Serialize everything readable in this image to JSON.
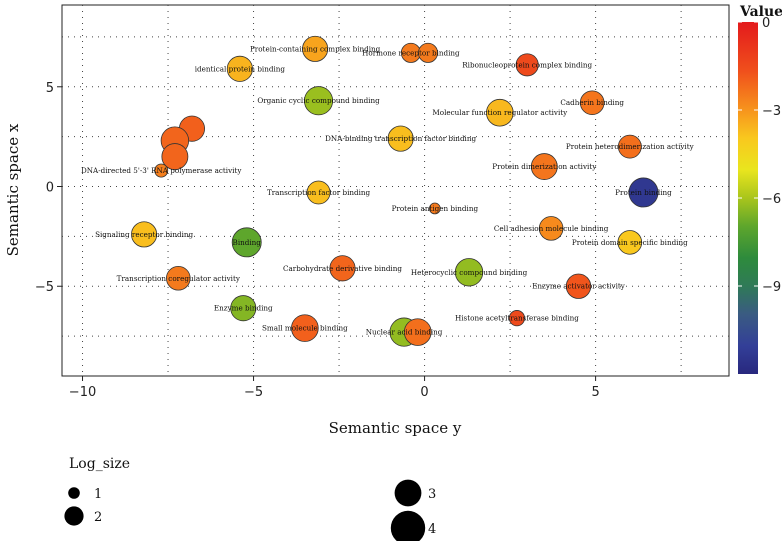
{
  "chart_data": {
    "type": "scatter",
    "title": "",
    "xlabel": "Semantic space y",
    "ylabel": "Semantic space x",
    "xlim": [
      -10.6,
      8.9
    ],
    "ylim": [
      -9.5,
      9.1
    ],
    "xticks": [
      -10,
      -5,
      0,
      5
    ],
    "yticks": [
      -5,
      0,
      5
    ],
    "xtick_labels": [
      "−10",
      "−5",
      "0",
      "5"
    ],
    "ytick_labels": [
      "−5",
      "0",
      "5"
    ],
    "grid": true,
    "color_legend": {
      "title": "Value",
      "min": -12,
      "max": 0,
      "ticks": [
        0,
        -3,
        -6,
        -9
      ],
      "tick_labels": [
        "0",
        "−3",
        "−6",
        "−9"
      ]
    },
    "size_legend": {
      "title": "Log_size",
      "entries": [
        {
          "label": "1",
          "log_size": 1
        },
        {
          "label": "2",
          "log_size": 2
        },
        {
          "label": "3",
          "log_size": 3
        },
        {
          "label": "4",
          "log_size": 4
        }
      ]
    },
    "points": [
      {
        "label": "Protein-containing complex binding",
        "x": -3.2,
        "y": 6.9,
        "value": -3.3,
        "log_size": 2.8
      },
      {
        "label": "Hormone receptor binding",
        "x": -0.4,
        "y": 6.7,
        "value": -2.5,
        "log_size": 2.0
      },
      {
        "label": "",
        "x": 0.1,
        "y": 6.7,
        "value": -2.5,
        "log_size": 2.0
      },
      {
        "label": "identical protein binding",
        "x": -5.4,
        "y": 5.9,
        "value": -3.6,
        "log_size": 2.8
      },
      {
        "label": "Ribonucleoprotein complex binding",
        "x": 3.0,
        "y": 6.1,
        "value": -1.5,
        "log_size": 2.4
      },
      {
        "label": "Organic cyclic compound binding",
        "x": -3.1,
        "y": 4.3,
        "value": -6.2,
        "log_size": 3.2
      },
      {
        "label": "Molecular function regulator activity",
        "x": 2.2,
        "y": 3.7,
        "value": -3.7,
        "log_size": 3.0
      },
      {
        "label": "Cadherin binding",
        "x": 4.9,
        "y": 4.2,
        "value": -2.4,
        "log_size": 2.6
      },
      {
        "label": "",
        "x": -6.8,
        "y": 2.9,
        "value": -2.0,
        "log_size": 2.8
      },
      {
        "label": "",
        "x": -7.3,
        "y": 2.3,
        "value": -2.1,
        "log_size": 3.1
      },
      {
        "label": "DNA-binding transcription factor binding",
        "x": -0.7,
        "y": 2.4,
        "value": -3.8,
        "log_size": 2.8
      },
      {
        "label": "Protein heterodimerization activity",
        "x": 6.0,
        "y": 2.0,
        "value": -2.3,
        "log_size": 2.5
      },
      {
        "label": "",
        "x": -7.3,
        "y": 1.5,
        "value": -2.1,
        "log_size": 2.9
      },
      {
        "label": "DNA-directed 5'-3' RNA polymerase activity",
        "x": -7.7,
        "y": 0.8,
        "value": -2.6,
        "log_size": 1.2
      },
      {
        "label": "Protein dimerization activity",
        "x": 3.5,
        "y": 1.0,
        "value": -2.4,
        "log_size": 2.9
      },
      {
        "label": "Transcription factor binding",
        "x": -3.1,
        "y": -0.3,
        "value": -3.8,
        "log_size": 2.5
      },
      {
        "label": "Protein binding",
        "x": 6.4,
        "y": -0.3,
        "value": -11.3,
        "log_size": 3.3
      },
      {
        "label": "Protein antigen binding",
        "x": 0.3,
        "y": -1.1,
        "value": -2.5,
        "log_size": 0.9
      },
      {
        "label": "Cell adhesion molecule binding",
        "x": 3.7,
        "y": -2.1,
        "value": -2.8,
        "log_size": 2.6
      },
      {
        "label": "Signaling receptor binding",
        "x": -8.2,
        "y": -2.4,
        "value": -3.8,
        "log_size": 2.8
      },
      {
        "label": "Binding",
        "x": -5.2,
        "y": -2.8,
        "value": -7.0,
        "log_size": 3.3
      },
      {
        "label": "Protein domain specific binding",
        "x": 6.0,
        "y": -2.8,
        "value": -4.0,
        "log_size": 2.6
      },
      {
        "label": "Carbohydrate derivative binding",
        "x": -2.4,
        "y": -4.1,
        "value": -2.1,
        "log_size": 2.8
      },
      {
        "label": "Heterocyclic compound binding",
        "x": 1.3,
        "y": -4.3,
        "value": -6.3,
        "log_size": 3.1
      },
      {
        "label": "Transcription coregulator activity",
        "x": -7.2,
        "y": -4.6,
        "value": -2.5,
        "log_size": 2.6
      },
      {
        "label": "Enzyme activator activity",
        "x": 4.5,
        "y": -5.0,
        "value": -1.8,
        "log_size": 2.7
      },
      {
        "label": "Enzyme binding",
        "x": -5.3,
        "y": -6.1,
        "value": -6.5,
        "log_size": 2.8
      },
      {
        "label": "Histone acetyltransferase binding",
        "x": 2.7,
        "y": -6.6,
        "value": -1.5,
        "log_size": 1.5
      },
      {
        "label": "Small molecule binding",
        "x": -3.5,
        "y": -7.1,
        "value": -2.0,
        "log_size": 3.0
      },
      {
        "label": "Nuclear acid binding",
        "x": -0.6,
        "y": -7.3,
        "value": -6.3,
        "log_size": 3.2
      },
      {
        "label": "",
        "x": -0.2,
        "y": -7.3,
        "value": -2.3,
        "log_size": 3.0
      }
    ]
  }
}
